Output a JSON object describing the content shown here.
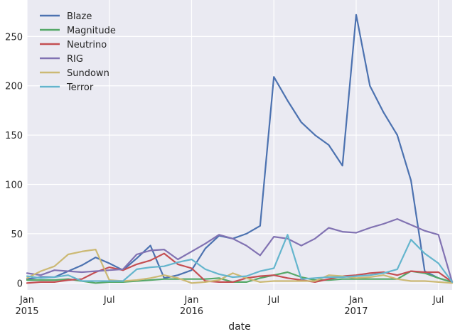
{
  "chart_data": {
    "type": "line",
    "title": "",
    "xlabel": "date",
    "ylabel": "",
    "ylim": [
      -7,
      287
    ],
    "xlim": [
      "2015-01",
      "2017-08"
    ],
    "grid": true,
    "legend_position": "top-left",
    "y_ticks": [
      0,
      50,
      100,
      150,
      200,
      250
    ],
    "x_ticks": [
      {
        "date": "2015-01",
        "label": "Jan",
        "sub": "2015"
      },
      {
        "date": "2015-07",
        "label": "Jul",
        "sub": ""
      },
      {
        "date": "2016-01",
        "label": "Jan",
        "sub": "2016"
      },
      {
        "date": "2016-07",
        "label": "Jul",
        "sub": ""
      },
      {
        "date": "2017-01",
        "label": "Jan",
        "sub": "2017"
      },
      {
        "date": "2017-07",
        "label": "Jul",
        "sub": ""
      }
    ],
    "x": [
      "2015-01",
      "2015-02",
      "2015-03",
      "2015-04",
      "2015-05",
      "2015-06",
      "2015-07",
      "2015-08",
      "2015-09",
      "2015-10",
      "2015-11",
      "2015-12",
      "2016-01",
      "2016-02",
      "2016-03",
      "2016-04",
      "2016-05",
      "2016-06",
      "2016-07",
      "2016-08",
      "2016-09",
      "2016-10",
      "2016-11",
      "2016-12",
      "2017-01",
      "2017-02",
      "2017-03",
      "2017-04",
      "2017-05",
      "2017-06",
      "2017-07",
      "2017-08"
    ],
    "series": [
      {
        "name": "Blaze",
        "color": "#4c72b0",
        "values": [
          4,
          6,
          6,
          12,
          18,
          26,
          20,
          13,
          25,
          38,
          5,
          8,
          13,
          35,
          48,
          45,
          50,
          58,
          209,
          185,
          163,
          150,
          140,
          119,
          272,
          200,
          173,
          150,
          104,
          12,
          5,
          1
        ]
      },
      {
        "name": "Magnitude",
        "color": "#55a868",
        "values": [
          3,
          3,
          3,
          4,
          2,
          0,
          1,
          1,
          2,
          3,
          4,
          4,
          4,
          4,
          5,
          1,
          1,
          5,
          8,
          11,
          6,
          3,
          3,
          4,
          4,
          4,
          4,
          4,
          12,
          10,
          5,
          1
        ]
      },
      {
        "name": "Neutrino",
        "color": "#c44e52",
        "values": [
          0,
          1,
          1,
          3,
          4,
          11,
          16,
          13,
          19,
          23,
          30,
          19,
          15,
          2,
          1,
          1,
          5,
          7,
          8,
          5,
          3,
          1,
          4,
          7,
          8,
          10,
          11,
          8,
          12,
          11,
          11,
          1
        ]
      },
      {
        "name": "RIG",
        "color": "#8172b2",
        "values": [
          10,
          8,
          13,
          12,
          11,
          12,
          13,
          14,
          29,
          33,
          34,
          24,
          32,
          40,
          49,
          45,
          38,
          28,
          47,
          45,
          38,
          45,
          56,
          52,
          51,
          56,
          60,
          65,
          59,
          53,
          49,
          1
        ]
      },
      {
        "name": "Sundown",
        "color": "#ccb974",
        "values": [
          5,
          12,
          17,
          29,
          32,
          34,
          3,
          2,
          3,
          5,
          8,
          5,
          0,
          1,
          3,
          10,
          5,
          1,
          2,
          2,
          2,
          2,
          8,
          7,
          5,
          6,
          8,
          4,
          2,
          2,
          1,
          0
        ]
      },
      {
        "name": "Terror",
        "color": "#64b5cd",
        "values": [
          7,
          5,
          6,
          8,
          2,
          2,
          2,
          2,
          14,
          16,
          17,
          21,
          24,
          14,
          9,
          6,
          7,
          12,
          15,
          49,
          4,
          5,
          6,
          6,
          7,
          8,
          10,
          14,
          44,
          30,
          20,
          1
        ]
      }
    ]
  }
}
